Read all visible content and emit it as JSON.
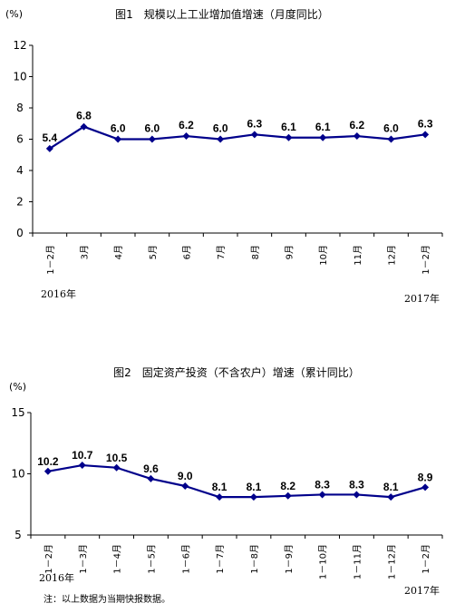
{
  "chart_data": [
    {
      "type": "line",
      "title": "图1　规模以上工业增加值增速（月度同比）",
      "unit": "(%)",
      "categories": [
        "1－2月",
        "3月",
        "4月",
        "5月",
        "6月",
        "7月",
        "8月",
        "9月",
        "10月",
        "11月",
        "12月",
        "1－2月"
      ],
      "series": [
        {
          "values": [
            5.4,
            6.8,
            6.0,
            6.0,
            6.2,
            6.0,
            6.3,
            6.1,
            6.1,
            6.2,
            6.0,
            6.3
          ],
          "labels": [
            "5.4",
            "6.8",
            "6.0",
            "6.0",
            "6.2",
            "6.0",
            "6.3",
            "6.1",
            "6.1",
            "6.2",
            "6.0",
            "6.3"
          ]
        }
      ],
      "ylim": [
        0,
        12
      ],
      "yticks": [
        "0",
        "2",
        "4",
        "6",
        "8",
        "10",
        "12"
      ],
      "year_left": "2016年",
      "year_right": "2017年",
      "line_color": "#00008b",
      "grid": false
    },
    {
      "type": "line",
      "title": "图2　固定资产投资（不含农户）增速（累计同比）",
      "unit": "(%)",
      "categories": [
        "1－2月",
        "1－3月",
        "1－4月",
        "1－5月",
        "1－6月",
        "1－7月",
        "1－8月",
        "1－9月",
        "1－10月",
        "1－11月",
        "1－12月",
        "1－2月"
      ],
      "series": [
        {
          "values": [
            10.2,
            10.7,
            10.5,
            9.6,
            9.0,
            8.1,
            8.1,
            8.2,
            8.3,
            8.3,
            8.1,
            8.9
          ],
          "labels": [
            "10.2",
            "10.7",
            "10.5",
            "9.6",
            "9.0",
            "8.1",
            "8.1",
            "8.2",
            "8.3",
            "8.3",
            "8.1",
            "8.9"
          ]
        }
      ],
      "ylim": [
        5,
        15
      ],
      "yticks": [
        "5",
        "10",
        "15"
      ],
      "year_left": "2016年",
      "year_right": "2017年",
      "line_color": "#00008b",
      "grid": false
    }
  ],
  "note": "注：以上数据为当期快报数据。"
}
